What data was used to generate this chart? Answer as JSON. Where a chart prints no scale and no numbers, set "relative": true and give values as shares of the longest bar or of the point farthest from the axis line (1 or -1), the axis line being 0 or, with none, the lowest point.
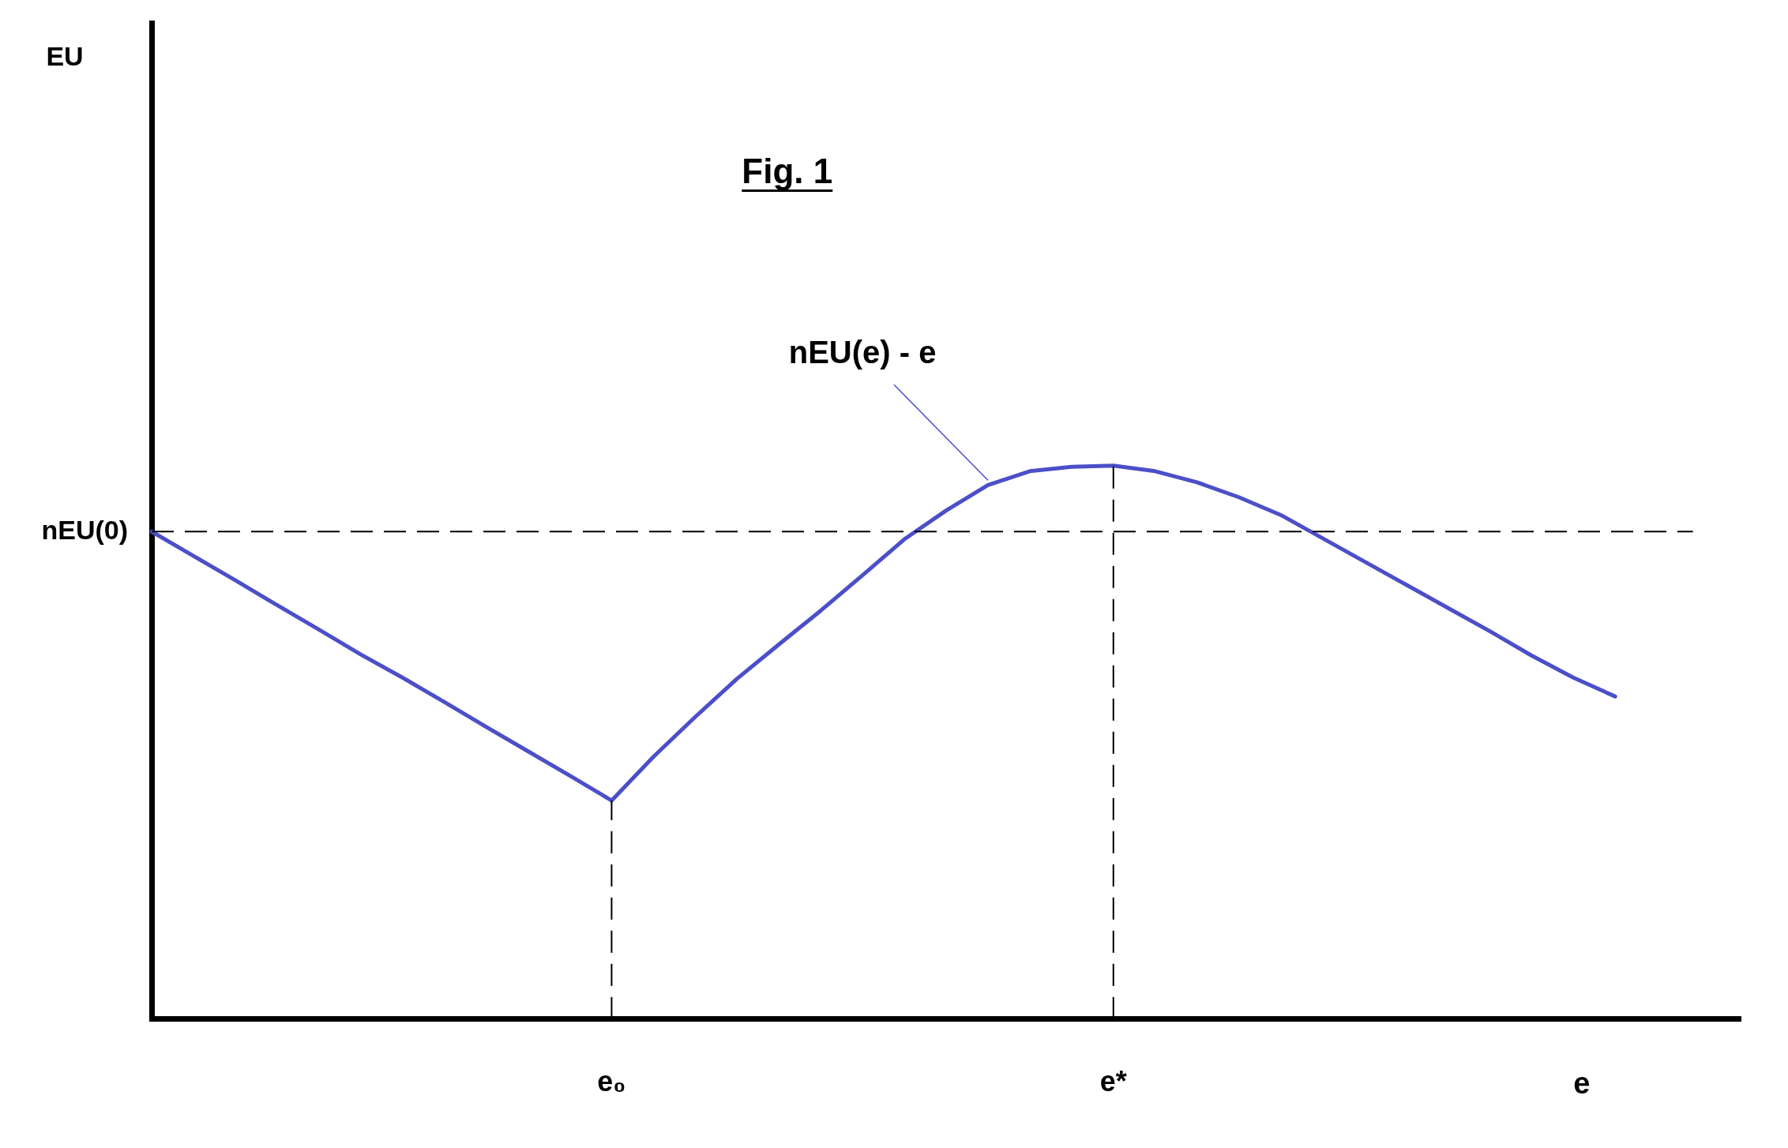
{
  "chart_data": {
    "type": "line",
    "title": "Fig. 1",
    "xlabel": "e",
    "relative": true,
    "categories": [
      null,
      null,
      null,
      null,
      null,
      null,
      null,
      null,
      null,
      null,
      null,
      "e₀",
      null,
      null,
      null,
      null,
      null,
      null,
      null,
      null,
      null,
      null,
      null,
      "e*",
      null,
      null,
      null,
      null,
      null,
      null,
      null,
      null,
      null,
      null,
      null,
      null,
      null,
      null,
      null
    ],
    "series": [
      {
        "color": "#4b4fc8",
        "values": [
          0.881,
          0.837,
          0.793,
          0.748,
          0.704,
          0.659,
          0.617,
          0.573,
          0.528,
          0.484,
          0.44,
          0.395,
          0.474,
          0.546,
          0.615,
          0.677,
          0.738,
          0.802,
          0.867,
          0.919,
          0.965,
          0.99,
          0.998,
          1.0,
          0.99,
          0.97,
          0.943,
          0.911,
          0.869,
          0.827,
          0.785,
          0.743,
          0.701,
          0.657,
          0.617,
          0.583,
          null,
          null,
          null
        ]
      }
    ],
    "ref_lines": [
      {
        "axis": "y",
        "value": 0.881,
        "label": "nEU(0)",
        "line_style": "dashed",
        "color": "#000000"
      },
      {
        "axis": "x",
        "value": "e₀",
        "line_style": "dashed",
        "color": "#000000"
      },
      {
        "axis": "x",
        "value": "e*",
        "line_style": "dashed",
        "color": "#000000"
      }
    ],
    "annotations": [
      "EU",
      "nEU(e) - e"
    ],
    "legend": false,
    "grid": false,
    "marker": "none",
    "line_style": "solid"
  }
}
